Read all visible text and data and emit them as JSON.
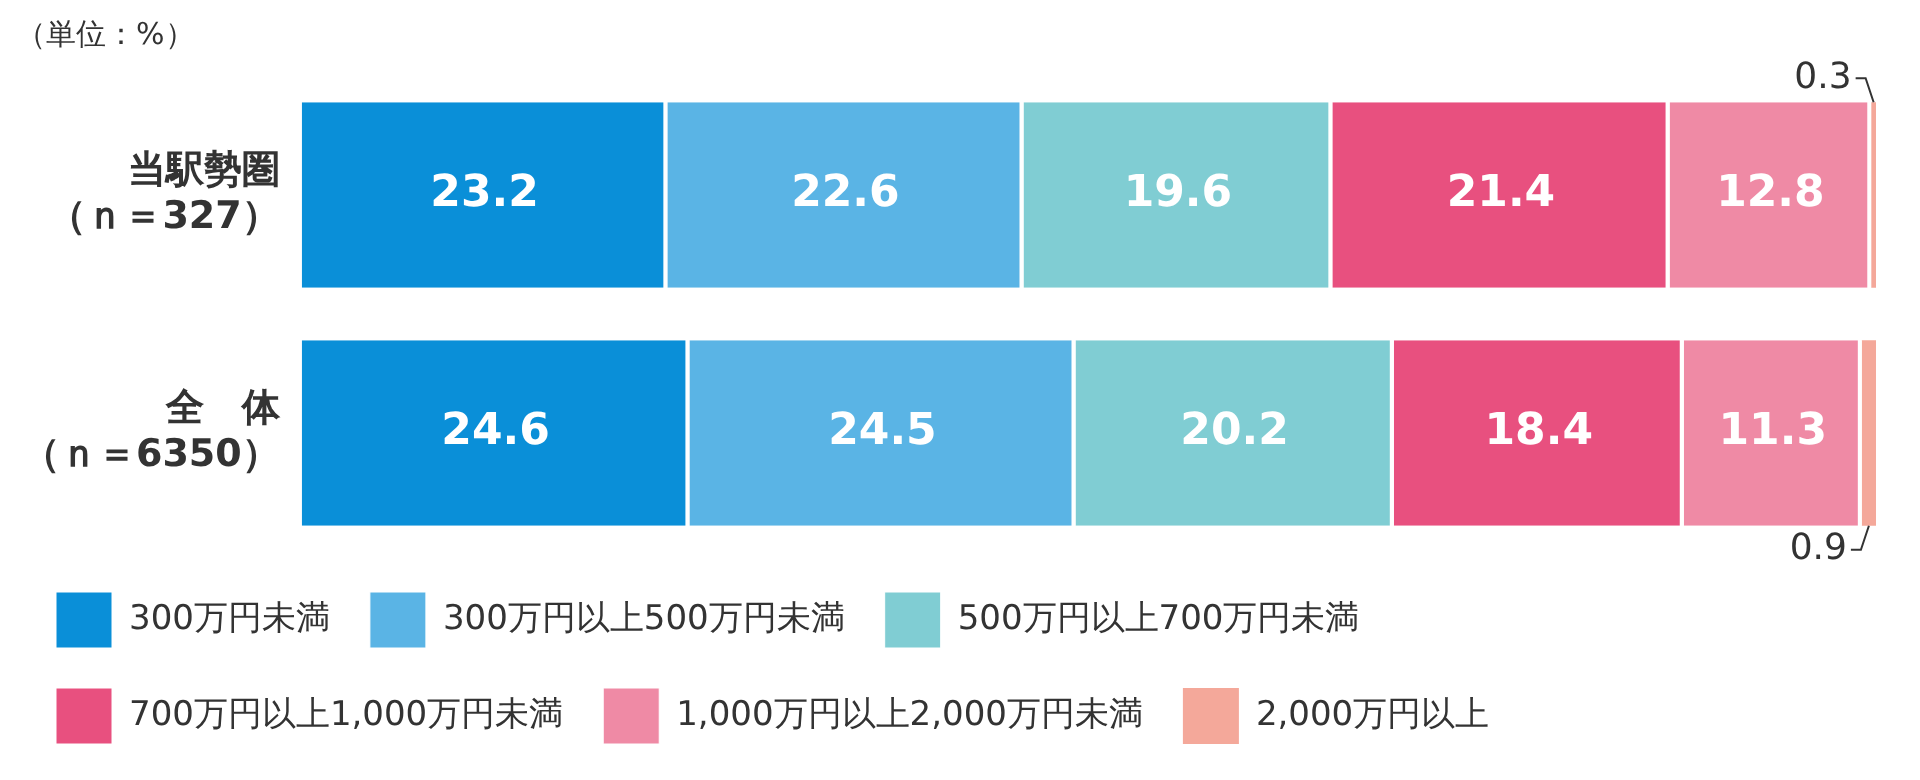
{
  "chart_data": {
    "type": "bar",
    "orientation": "horizontal",
    "stacked": true,
    "data_labels": true,
    "legend": "bottom",
    "annotations": [
      "（単位：%）"
    ],
    "categories": [
      "当駅勢圏（ｎ＝327）",
      "全　体（ｎ＝6350）"
    ],
    "series": [
      {
        "name": "300万円未満",
        "color": "#0a8fd8",
        "values": [
          23.2,
          24.6
        ]
      },
      {
        "name": "300万円以上500万円未満",
        "color": "#5ab4e5",
        "values": [
          22.6,
          24.5
        ]
      },
      {
        "name": "500万円以上700万円未満",
        "color": "#80cdd3",
        "values": [
          19.6,
          20.2
        ]
      },
      {
        "name": "700万円以上1,000万円未満",
        "color": "#e8507f",
        "values": [
          21.4,
          18.4
        ]
      },
      {
        "name": "1,000万円以上2,000万円未満",
        "color": "#ef8aa5",
        "values": [
          12.8,
          11.3
        ]
      },
      {
        "name": "2,000万円以上",
        "color": "#f4a89a",
        "values": [
          0.3,
          0.9
        ]
      }
    ]
  }
}
